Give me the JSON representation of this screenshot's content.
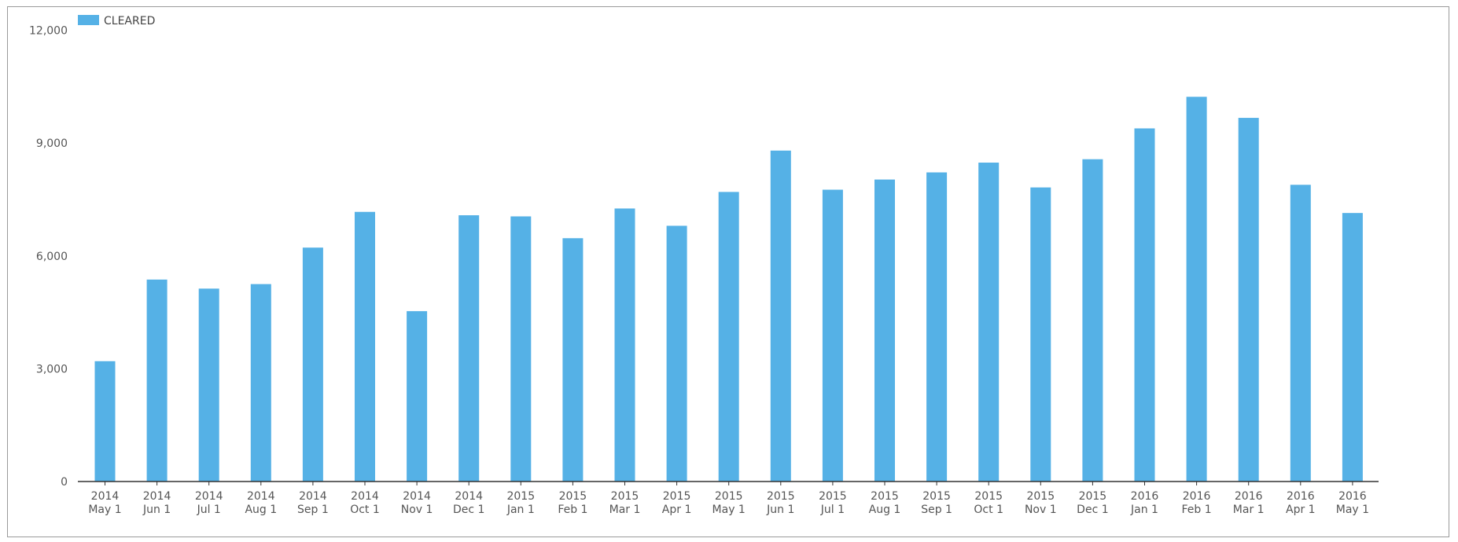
{
  "chart_data": {
    "type": "bar",
    "legend": {
      "label": "CLEARED",
      "position": "top-left"
    },
    "color": "#55b1e6",
    "ylim": [
      0,
      12000
    ],
    "yticks": [
      "0",
      "3,000",
      "6,000",
      "9,000",
      "12,000"
    ],
    "yticks_values": [
      0,
      3000,
      6000,
      9000,
      12000
    ],
    "categories": [
      {
        "year": "2014",
        "month": "May 1"
      },
      {
        "year": "2014",
        "month": "Jun 1"
      },
      {
        "year": "2014",
        "month": "Jul 1"
      },
      {
        "year": "2014",
        "month": "Aug 1"
      },
      {
        "year": "2014",
        "month": "Sep 1"
      },
      {
        "year": "2014",
        "month": "Oct 1"
      },
      {
        "year": "2014",
        "month": "Nov 1"
      },
      {
        "year": "2014",
        "month": "Dec 1"
      },
      {
        "year": "2015",
        "month": "Jan 1"
      },
      {
        "year": "2015",
        "month": "Feb 1"
      },
      {
        "year": "2015",
        "month": "Mar 1"
      },
      {
        "year": "2015",
        "month": "Apr 1"
      },
      {
        "year": "2015",
        "month": "May 1"
      },
      {
        "year": "2015",
        "month": "Jun 1"
      },
      {
        "year": "2015",
        "month": "Jul 1"
      },
      {
        "year": "2015",
        "month": "Aug 1"
      },
      {
        "year": "2015",
        "month": "Sep 1"
      },
      {
        "year": "2015",
        "month": "Oct 1"
      },
      {
        "year": "2015",
        "month": "Nov 1"
      },
      {
        "year": "2015",
        "month": "Dec 1"
      },
      {
        "year": "2016",
        "month": "Jan 1"
      },
      {
        "year": "2016",
        "month": "Feb 1"
      },
      {
        "year": "2016",
        "month": "Mar 1"
      },
      {
        "year": "2016",
        "month": "Apr 1"
      },
      {
        "year": "2016",
        "month": "May 1"
      }
    ],
    "series": [
      {
        "name": "CLEARED",
        "values": [
          3200,
          5370,
          5130,
          5250,
          6220,
          7170,
          4530,
          7080,
          7050,
          6470,
          7260,
          6800,
          7700,
          8800,
          7760,
          8030,
          8220,
          8480,
          7820,
          8570,
          9390,
          10230,
          9670,
          7890,
          7140
        ]
      }
    ],
    "grid": false
  }
}
